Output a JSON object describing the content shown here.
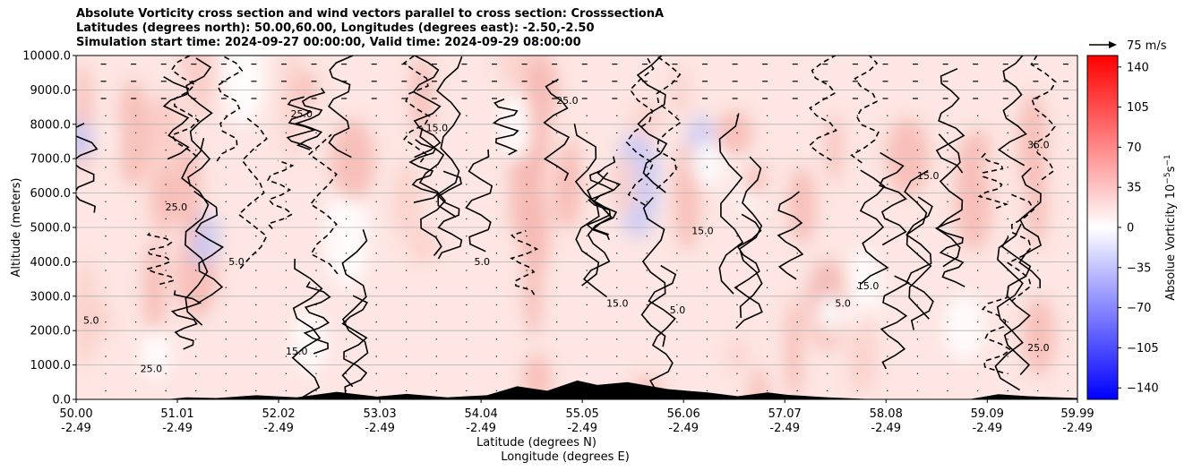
{
  "title_lines": [
    "Absolute Vorticity cross section and wind vectors parallel to cross section: CrosssectionA",
    "Latitudes (degrees north): 50.00,60.00, Longitudes (degrees east): -2.50,-2.50",
    "Simulation start time: 2024-09-27 00:00:00, Valid time: 2024-09-29 08:00:00"
  ],
  "chart_data": {
    "type": "heatmap",
    "ylabel": "Altitude (meters)",
    "xlabel_lines": [
      "Latitude (degrees N)",
      "Longitude (degrees E)"
    ],
    "ylim": [
      0,
      10000
    ],
    "yticks": [
      "0.0",
      "1000.0",
      "2000.0",
      "3000.0",
      "4000.0",
      "5000.0",
      "6000.0",
      "7000.0",
      "8000.0",
      "9000.0",
      "10000.0"
    ],
    "xlim": [
      50.0,
      59.99
    ],
    "xticks": [
      {
        "lat": "50.00",
        "lon": "-2.49"
      },
      {
        "lat": "51.01",
        "lon": "-2.49"
      },
      {
        "lat": "52.02",
        "lon": "-2.49"
      },
      {
        "lat": "53.03",
        "lon": "-2.49"
      },
      {
        "lat": "54.04",
        "lon": "-2.49"
      },
      {
        "lat": "55.05",
        "lon": "-2.49"
      },
      {
        "lat": "56.06",
        "lon": "-2.49"
      },
      {
        "lat": "57.07",
        "lon": "-2.49"
      },
      {
        "lat": "58.08",
        "lon": "-2.49"
      },
      {
        "lat": "59.09",
        "lon": "-2.49"
      },
      {
        "lat": "59.99",
        "lon": "-2.49"
      }
    ],
    "grid": "horizontal",
    "colorbar": {
      "label": "Absolue Vorticity 10",
      "label_exp": "−5",
      "label_unit_s": "s",
      "label_unit_exp": "−1",
      "range": [
        -150,
        150
      ],
      "ticks": [
        "140",
        "105",
        "70",
        "35",
        "0",
        "−35",
        "−70",
        "−105",
        "−140"
      ],
      "tick_values": [
        140,
        105,
        70,
        35,
        0,
        -35,
        -70,
        -105,
        -140
      ],
      "colormap": "bwr",
      "colors": {
        "low": "#0000ff",
        "mid": "#ffffff",
        "high": "#ff0000"
      }
    },
    "wind_reference": {
      "label": "75 m/s"
    },
    "contour_levels": [
      5.0,
      15.0,
      25.0,
      35.0,
      45.0
    ],
    "contour_labels": [
      {
        "lat": 50.15,
        "alt": 2200,
        "text": "5.0"
      },
      {
        "lat": 51.6,
        "alt": 3900,
        "text": "5.0"
      },
      {
        "lat": 54.05,
        "alt": 3900,
        "text": "5.0"
      },
      {
        "lat": 55.4,
        "alt": 2700,
        "text": "15.0"
      },
      {
        "lat": 56.25,
        "alt": 4800,
        "text": "15.0"
      },
      {
        "lat": 57.9,
        "alt": 3200,
        "text": "15.0"
      },
      {
        "lat": 58.5,
        "alt": 6400,
        "text": "15.0"
      },
      {
        "lat": 59.6,
        "alt": 7300,
        "text": "35.0"
      },
      {
        "lat": 50.75,
        "alt": 800,
        "text": "25.0"
      },
      {
        "lat": 51.0,
        "alt": 5500,
        "text": "25.0"
      },
      {
        "lat": 53.6,
        "alt": 7800,
        "text": "15.0"
      },
      {
        "lat": 52.2,
        "alt": 1300,
        "text": "15.0"
      },
      {
        "lat": 57.65,
        "alt": 2700,
        "text": "5.0"
      },
      {
        "lat": 59.6,
        "alt": 1400,
        "text": "25.0"
      },
      {
        "lat": 54.9,
        "alt": 8600,
        "text": "25.0"
      },
      {
        "lat": 56.0,
        "alt": 2500,
        "text": "5.0"
      },
      {
        "lat": 52.25,
        "alt": 8200,
        "text": "25.0"
      }
    ],
    "terrain": [
      {
        "lat": 50.0,
        "alt": 0
      },
      {
        "lat": 50.9,
        "alt": 0
      },
      {
        "lat": 51.1,
        "alt": 60
      },
      {
        "lat": 51.4,
        "alt": 40
      },
      {
        "lat": 51.8,
        "alt": 120
      },
      {
        "lat": 52.2,
        "alt": 60
      },
      {
        "lat": 52.6,
        "alt": 220
      },
      {
        "lat": 53.0,
        "alt": 80
      },
      {
        "lat": 53.3,
        "alt": 160
      },
      {
        "lat": 53.7,
        "alt": 60
      },
      {
        "lat": 54.1,
        "alt": 120
      },
      {
        "lat": 54.4,
        "alt": 380
      },
      {
        "lat": 54.7,
        "alt": 250
      },
      {
        "lat": 55.0,
        "alt": 550
      },
      {
        "lat": 55.2,
        "alt": 420
      },
      {
        "lat": 55.5,
        "alt": 500
      },
      {
        "lat": 55.9,
        "alt": 300
      },
      {
        "lat": 56.3,
        "alt": 200
      },
      {
        "lat": 56.6,
        "alt": 90
      },
      {
        "lat": 56.9,
        "alt": 200
      },
      {
        "lat": 57.1,
        "alt": 130
      },
      {
        "lat": 57.5,
        "alt": 60
      },
      {
        "lat": 57.9,
        "alt": 10
      },
      {
        "lat": 58.4,
        "alt": 0
      },
      {
        "lat": 58.9,
        "alt": 0
      },
      {
        "lat": 59.2,
        "alt": 150
      },
      {
        "lat": 59.5,
        "alt": 90
      },
      {
        "lat": 59.99,
        "alt": 40
      }
    ]
  }
}
